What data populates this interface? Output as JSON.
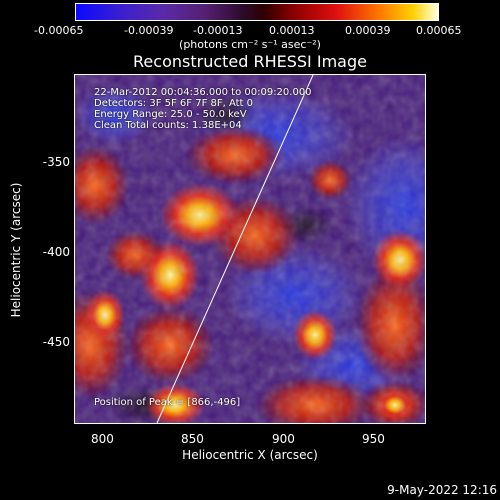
{
  "colorbar": {
    "ticks": [
      "-0.00065",
      "-0.00039",
      "-0.00013",
      "0.00013",
      "0.00039",
      "0.00065"
    ],
    "units": "(photons cm⁻² s⁻¹ asec⁻²)"
  },
  "title": "Reconstructed RHESSI Image",
  "annotations": {
    "time": "22-Mar-2012 00:04:36.000 to 00:09:20.000",
    "detectors": "Detectors: 3F 5F 6F 7F 8F, Att 0",
    "energy": "Energy Range: 25.0 - 50.0 keV",
    "method": "Clean     Total counts: 1.38E+04",
    "peak": "Position of Peak = [866,-496]"
  },
  "axes": {
    "xlabel": "Heliocentric X (arcsec)",
    "ylabel": "Heliocentric Y (arcsec)",
    "xticks": [
      "800",
      "850",
      "900",
      "950"
    ],
    "yticks": [
      "-350",
      "-400",
      "-450"
    ]
  },
  "footer": {
    "date": "9-May-2022 12:16"
  }
}
